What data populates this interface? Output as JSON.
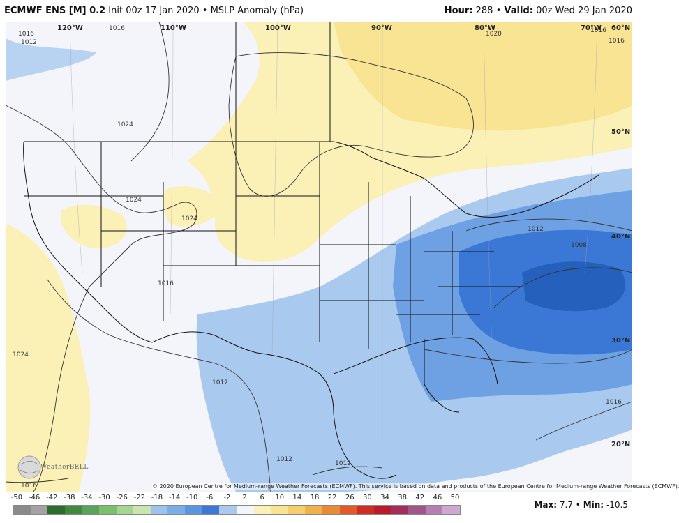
{
  "header": {
    "model": "ECMWF ENS [M] 0.2",
    "init": "Init 00z 17 Jan 2020",
    "bullet": "•",
    "product": "MSLP Anomaly (hPa)",
    "hour_label": "Hour:",
    "hour": "288",
    "valid_label": "Valid:",
    "valid": "00z Wed 29 Jan 2020"
  },
  "map": {
    "lon_labels": [
      "120°W",
      "110°W",
      "100°W",
      "90°W",
      "80°W",
      "70°W"
    ],
    "lat_labels": [
      "60°N",
      "50°N",
      "40°N",
      "30°N",
      "20°N"
    ],
    "isobar_labels": [
      "1016",
      "1012",
      "1016",
      "1024",
      "1024",
      "1024",
      "1020",
      "1016",
      "1016",
      "1012",
      "1008",
      "1016",
      "1024",
      "1012",
      "1012",
      "1012",
      "1016",
      "1016"
    ],
    "copyright": "© 2020 European Centre for Medium-range Weather Forecasts (ECMWF). This service is based on data and products of the European Centre for Medium-range Weather Forecasts (ECMWF).",
    "logo_text": "WeatherBELL",
    "colors": {
      "neutral": "#f3f5fb",
      "light_yellow": "#fbf1b6",
      "yellow": "#f8e493",
      "light_blue": "#a9c9ef",
      "blue": "#6ea1e3",
      "deep_blue": "#3b78d6",
      "darkest_blue": "#2660bd"
    }
  },
  "legend": {
    "ticks": [
      "-50",
      "-46",
      "-42",
      "-38",
      "-34",
      "-30",
      "-26",
      "-22",
      "-18",
      "-14",
      "-10",
      "-6",
      "-2",
      "2",
      "6",
      "10",
      "14",
      "18",
      "22",
      "26",
      "30",
      "34",
      "38",
      "42",
      "46",
      "50"
    ],
    "colors": [
      "#8a8a8a",
      "#a3a3a3",
      "#2f6b2f",
      "#3f8a3f",
      "#5aa35a",
      "#7cbf6b",
      "#a6d68d",
      "#c9e6b0",
      "#9dc3e8",
      "#7aaee6",
      "#5b94e0",
      "#3c78d6",
      "#a9c9ef",
      "#f3f5fb",
      "#fbf1b6",
      "#f8e493",
      "#f4cf6b",
      "#f0b04a",
      "#e98a36",
      "#e05a2b",
      "#cf2c25",
      "#b81b2c",
      "#a0305a",
      "#a3558a",
      "#b67fb3",
      "#cfa8cf"
    ]
  },
  "stats": {
    "max_label": "Max:",
    "max": "7.7",
    "sep": "•",
    "min_label": "Min:",
    "min": "-10.5"
  }
}
